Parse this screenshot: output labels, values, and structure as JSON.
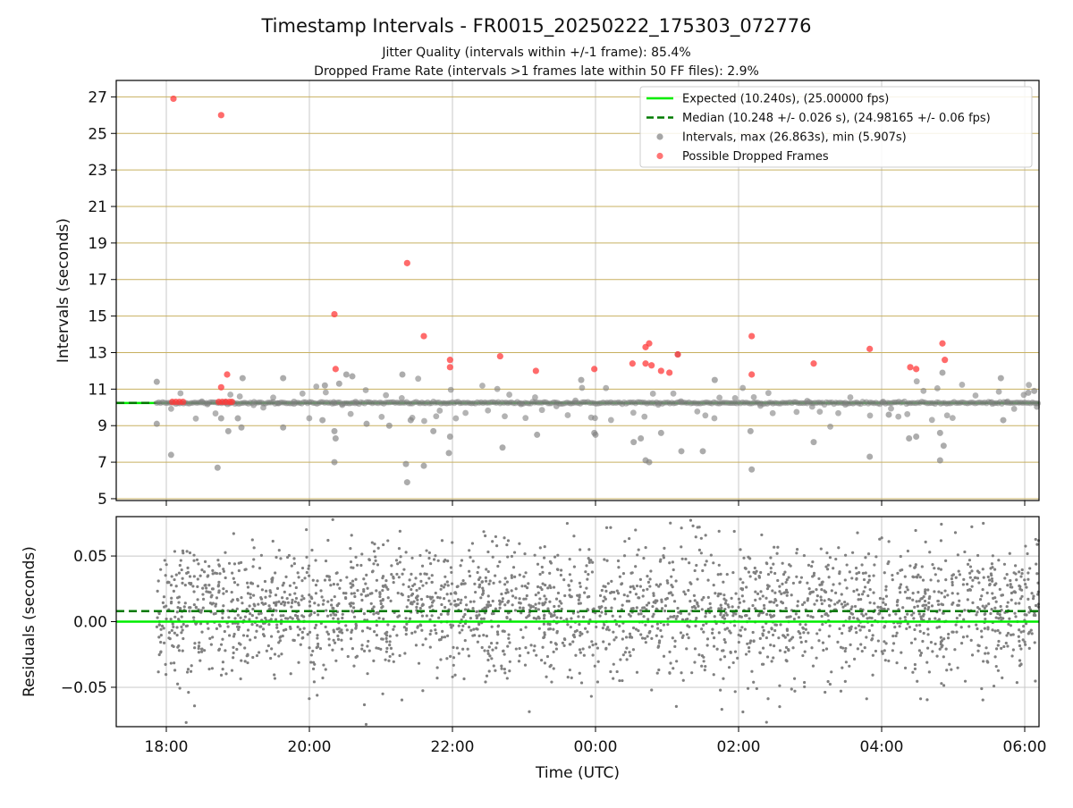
{
  "figure": {
    "title": "Timestamp Intervals - FR0015_20250222_175303_072776",
    "subtitle_jitter": "Jitter Quality (intervals within +/-1 frame): 85.4%",
    "subtitle_dropped": "Dropped Frame Rate (intervals >1 frames late within 50 FF files): 2.9%"
  },
  "colors": {
    "expected": "#00ee00",
    "median": "#007a00",
    "intervals": "#808080",
    "dropped": "#ff3a3a",
    "h_grid": "#c8b060",
    "v_grid": "#c8c8c8"
  },
  "chart_data": [
    {
      "type": "scatter",
      "xlabel": "",
      "ylabel": "Intervals (seconds)",
      "xlim": [
        "17:18",
        "06:12"
      ],
      "ylim": [
        4.9,
        27.9
      ],
      "yticks": [
        5,
        7,
        9,
        11,
        13,
        15,
        17,
        19,
        21,
        23,
        25,
        27
      ],
      "xticks": [
        "18:00",
        "20:00",
        "22:00",
        "00:00",
        "02:00",
        "04:00",
        "06:00"
      ],
      "grid": true,
      "legend_position": "top-right",
      "legend": [
        {
          "label": "Expected (10.240s), (25.00000 fps)",
          "marker": "solid-line",
          "color": "#00ee00"
        },
        {
          "label": "Median (10.248 +/- 0.026 s), (24.98165 +/- 0.06 fps)",
          "marker": "dashed-line",
          "color": "#007a00"
        },
        {
          "label": "Intervals, max (26.863s), min (5.907s)",
          "marker": "dot",
          "color": "#808080"
        },
        {
          "label": "Possible Dropped Frames",
          "marker": "dot",
          "color": "#ff3a3a"
        }
      ],
      "expected_line": 10.24,
      "median_line": 10.248,
      "series": [
        {
          "name": "Possible Dropped Frames",
          "color": "#ff3a3a",
          "points": [
            [
              "18:06",
              26.9
            ],
            [
              "18:46",
              26.0
            ],
            [
              "18:46",
              11.1
            ],
            [
              "18:51",
              11.8
            ],
            [
              "18:05",
              10.3
            ],
            [
              "18:08",
              10.3
            ],
            [
              "18:11",
              10.3
            ],
            [
              "18:14",
              10.3
            ],
            [
              "18:44",
              10.3
            ],
            [
              "18:47",
              10.3
            ],
            [
              "18:50",
              10.3
            ],
            [
              "18:53",
              10.3
            ],
            [
              "18:55",
              10.3
            ],
            [
              "20:21",
              15.1
            ],
            [
              "20:22",
              12.1
            ],
            [
              "21:22",
              17.9
            ],
            [
              "21:36",
              13.9
            ],
            [
              "21:58",
              12.6
            ],
            [
              "21:58",
              12.2
            ],
            [
              "22:40",
              12.8
            ],
            [
              "23:10",
              12.0
            ],
            [
              "23:59",
              12.1
            ],
            [
              "00:31",
              12.4
            ],
            [
              "00:42",
              13.3
            ],
            [
              "00:45",
              13.5
            ],
            [
              "00:42",
              12.4
            ],
            [
              "00:47",
              12.3
            ],
            [
              "00:55",
              12.0
            ],
            [
              "01:02",
              11.9
            ],
            [
              "01:09",
              12.9
            ],
            [
              "02:11",
              13.9
            ],
            [
              "02:11",
              11.8
            ],
            [
              "03:03",
              12.4
            ],
            [
              "03:50",
              13.2
            ],
            [
              "04:24",
              12.2
            ],
            [
              "04:29",
              12.1
            ],
            [
              "04:51",
              13.5
            ],
            [
              "04:53",
              12.6
            ]
          ]
        },
        {
          "name": "Intervals",
          "color": "#808080",
          "points": [
            [
              "17:52",
              11.4
            ],
            [
              "17:52",
              9.1
            ],
            [
              "18:04",
              7.4
            ],
            [
              "18:43",
              6.7
            ],
            [
              "18:46",
              9.4
            ],
            [
              "18:52",
              8.7
            ],
            [
              "19:00",
              9.4
            ],
            [
              "19:03",
              8.9
            ],
            [
              "19:04",
              11.6
            ],
            [
              "19:38",
              11.6
            ],
            [
              "19:38",
              8.9
            ],
            [
              "20:11",
              9.3
            ],
            [
              "20:13",
              11.2
            ],
            [
              "20:21",
              7.0
            ],
            [
              "20:21",
              8.7
            ],
            [
              "20:22",
              8.3
            ],
            [
              "20:25",
              11.3
            ],
            [
              "20:31",
              11.8
            ],
            [
              "20:36",
              11.7
            ],
            [
              "20:48",
              9.1
            ],
            [
              "21:07",
              9.0
            ],
            [
              "21:18",
              11.8
            ],
            [
              "21:21",
              6.9
            ],
            [
              "21:22",
              5.9
            ],
            [
              "21:25",
              9.3
            ],
            [
              "21:36",
              6.8
            ],
            [
              "21:44",
              8.7
            ],
            [
              "21:57",
              7.5
            ],
            [
              "21:58",
              8.4
            ],
            [
              "22:42",
              7.8
            ],
            [
              "23:11",
              8.5
            ],
            [
              "23:48",
              11.5
            ],
            [
              "23:59",
              8.6
            ],
            [
              "00:00",
              8.5
            ],
            [
              "00:32",
              8.1
            ],
            [
              "00:38",
              8.3
            ],
            [
              "00:42",
              7.1
            ],
            [
              "00:45",
              7.0
            ],
            [
              "00:55",
              8.6
            ],
            [
              "01:09",
              12.9
            ],
            [
              "01:12",
              7.6
            ],
            [
              "01:30",
              7.6
            ],
            [
              "01:40",
              11.5
            ],
            [
              "02:10",
              8.7
            ],
            [
              "02:11",
              6.6
            ],
            [
              "03:03",
              8.1
            ],
            [
              "03:50",
              7.3
            ],
            [
              "04:06",
              9.6
            ],
            [
              "04:23",
              8.3
            ],
            [
              "04:29",
              8.4
            ],
            [
              "04:49",
              8.6
            ],
            [
              "04:49",
              7.1
            ],
            [
              "04:51",
              11.9
            ],
            [
              "04:52",
              7.9
            ],
            [
              "05:40",
              11.6
            ],
            [
              "05:42",
              9.3
            ],
            [
              "06:03",
              10.8
            ],
            [
              "06:08",
              10.9
            ]
          ]
        }
      ]
    },
    {
      "type": "scatter",
      "xlabel": "Time (UTC)",
      "ylabel": "Residuals (seconds)",
      "xlim": [
        "17:18",
        "06:12"
      ],
      "ylim": [
        -0.08,
        0.08
      ],
      "yticks": [
        -0.05,
        0.0,
        0.05
      ],
      "ytick_labels": [
        "−0.05",
        "0.00",
        "0.05"
      ],
      "xticks": [
        "18:00",
        "20:00",
        "22:00",
        "00:00",
        "02:00",
        "04:00",
        "06:00"
      ],
      "grid": true,
      "expected_line": 0.0,
      "median_line": 0.008,
      "series": [
        {
          "name": "Residuals",
          "color": "#808080",
          "x_range": [
            "17:52",
            "06:12"
          ],
          "center": 0.008,
          "spread": 0.03,
          "count": 2600
        }
      ]
    }
  ]
}
